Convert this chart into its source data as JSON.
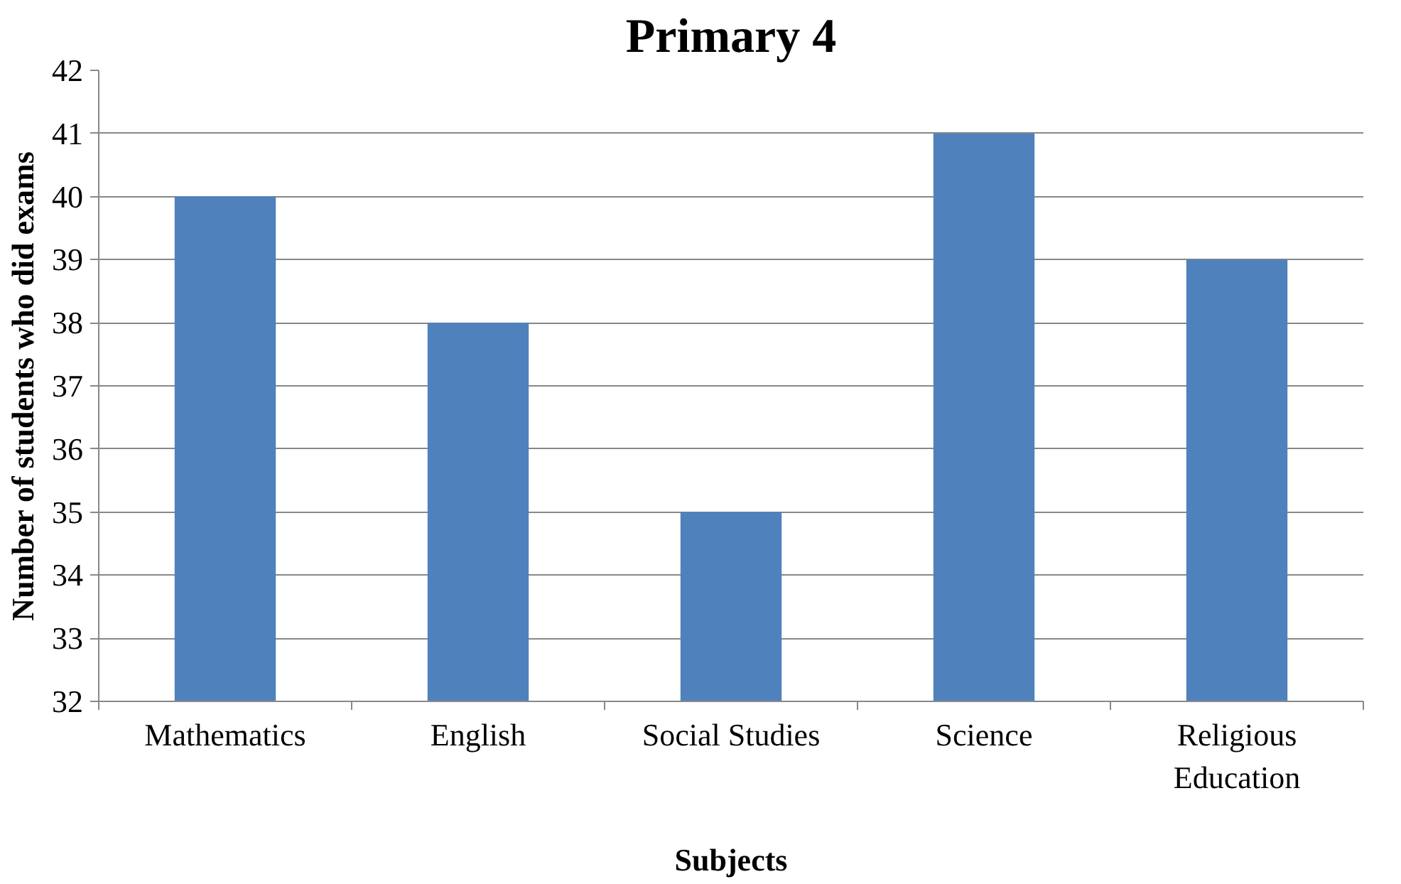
{
  "chart_data": {
    "type": "bar",
    "title": "Primary 4",
    "xlabel": "Subjects",
    "ylabel": "Number of students who did exams",
    "categories": [
      "Mathematics",
      "English",
      "Social Studies",
      "Science",
      "Religious Education"
    ],
    "values": [
      40,
      38,
      35,
      41,
      39
    ],
    "color": "#4f81bd",
    "ylim": [
      32,
      42
    ],
    "yticks": [
      32,
      33,
      34,
      35,
      36,
      37,
      38,
      39,
      40,
      41,
      42
    ],
    "grid": "y"
  }
}
